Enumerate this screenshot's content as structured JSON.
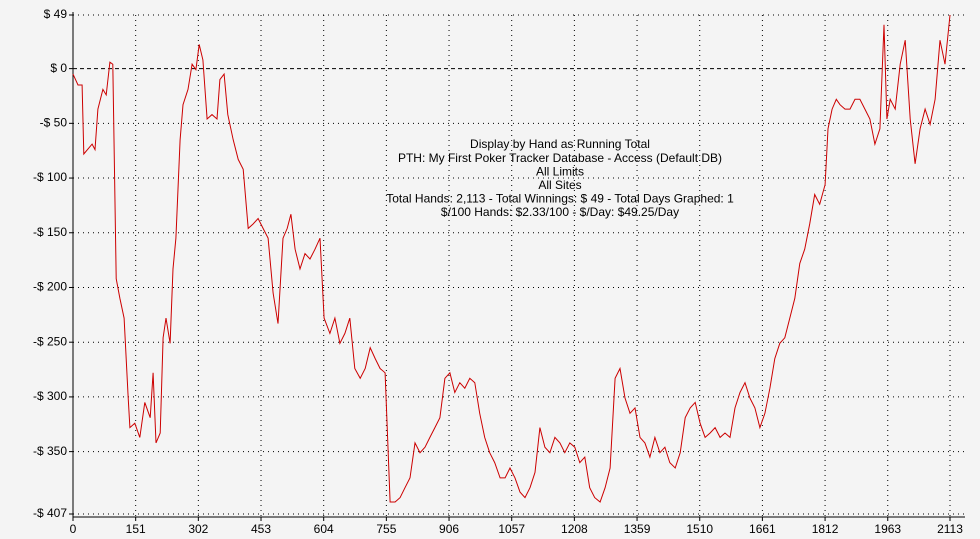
{
  "chart_data": {
    "type": "line",
    "annotations": [
      "Display by Hand as Running Total",
      "PTH: My First Poker Tracker Database - Access (Default DB)",
      "All Limits",
      "All Sites",
      "Total Hands: 2,113 - Total Winnings: $ 49 - Total Days Graphed: 1",
      "$/100 Hands: $2.33/100 - $/Day: $49.25/Day"
    ],
    "color": "#cc0000",
    "grid": true,
    "xlim": [
      0,
      2113
    ],
    "xticks": [
      0,
      151,
      302,
      453,
      604,
      755,
      906,
      1057,
      1208,
      1359,
      1510,
      1661,
      1812,
      1963,
      2113
    ],
    "ylim": [
      -407,
      49
    ],
    "yticks": [
      {
        "value": 49,
        "label": "$ 49"
      },
      {
        "value": 0,
        "label": "$ 0"
      },
      {
        "value": -50,
        "label": "-$ 50"
      },
      {
        "value": -100,
        "label": "-$ 100"
      },
      {
        "value": -150,
        "label": "-$ 150"
      },
      {
        "value": -200,
        "label": "-$ 200"
      },
      {
        "value": -250,
        "label": "-$ 250"
      },
      {
        "value": -300,
        "label": "-$ 300"
      },
      {
        "value": -350,
        "label": "-$ 350"
      },
      {
        "value": -407,
        "label": "-$ 407"
      }
    ],
    "x": [
      0,
      12,
      22,
      26,
      46,
      53,
      60,
      72,
      80,
      89,
      96,
      104,
      113,
      123,
      133,
      137,
      149,
      161,
      173,
      186,
      193,
      200,
      210,
      217,
      224,
      234,
      241,
      248,
      258,
      265,
      277,
      287,
      296,
      304,
      313,
      323,
      335,
      347,
      354,
      364,
      373,
      386,
      398,
      410,
      422,
      434,
      446,
      458,
      470,
      482,
      494,
      506,
      516,
      525,
      535,
      547,
      559,
      571,
      583,
      595,
      605,
      619,
      631,
      643,
      655,
      667,
      679,
      692,
      704,
      716,
      728,
      740,
      752,
      764,
      776,
      788,
      800,
      812,
      824,
      836,
      848,
      860,
      872,
      884,
      896,
      908,
      920,
      932,
      944,
      956,
      968,
      980,
      992,
      1004,
      1016,
      1029,
      1041,
      1053,
      1065,
      1077,
      1089,
      1101,
      1113,
      1125,
      1137,
      1149,
      1161,
      1173,
      1185,
      1197,
      1209,
      1221,
      1233,
      1245,
      1257,
      1270,
      1282,
      1294,
      1306,
      1318,
      1330,
      1342,
      1354,
      1366,
      1378,
      1390,
      1402,
      1414,
      1426,
      1438,
      1451,
      1463,
      1475,
      1487,
      1499,
      1511,
      1523,
      1535,
      1547,
      1559,
      1571,
      1583,
      1595,
      1607,
      1619,
      1631,
      1643,
      1655,
      1667,
      1679,
      1691,
      1703,
      1715,
      1727,
      1739,
      1751,
      1763,
      1775,
      1787,
      1799,
      1812,
      1819,
      1829,
      1839,
      1848,
      1860,
      1872,
      1884,
      1896,
      1908,
      1920,
      1932,
      1944,
      1954,
      1961,
      1969,
      1981,
      1993,
      2005,
      2017,
      2029,
      2041,
      2053,
      2065,
      2077,
      2089,
      2101,
      2113
    ],
    "values": [
      -5,
      -15,
      -15,
      -78,
      -69,
      -74,
      -37,
      -19,
      -24,
      6,
      4,
      -192,
      -210,
      -228,
      -301,
      -328,
      -324,
      -337,
      -305,
      -319,
      -278,
      -342,
      -333,
      -246,
      -228,
      -251,
      -183,
      -155,
      -65,
      -33,
      -19,
      4,
      -1,
      22,
      8,
      -46,
      -42,
      -46,
      -10,
      -5,
      -42,
      -65,
      -83,
      -92,
      -146,
      -142,
      -137,
      -146,
      -155,
      -205,
      -233,
      -155,
      -146,
      -133,
      -165,
      -183,
      -169,
      -174,
      -165,
      -155,
      -228,
      -242,
      -228,
      -251,
      -242,
      -228,
      -274,
      -283,
      -274,
      -255,
      -265,
      -274,
      -278,
      -396,
      -396,
      -392,
      -383,
      -374,
      -342,
      -351,
      -346,
      -337,
      -328,
      -319,
      -283,
      -278,
      -296,
      -287,
      -292,
      -283,
      -287,
      -315,
      -337,
      -351,
      -360,
      -374,
      -374,
      -365,
      -374,
      -387,
      -392,
      -383,
      -369,
      -328,
      -346,
      -351,
      -337,
      -342,
      -351,
      -342,
      -346,
      -360,
      -355,
      -383,
      -392,
      -396,
      -383,
      -365,
      -283,
      -274,
      -301,
      -315,
      -310,
      -337,
      -342,
      -355,
      -337,
      -351,
      -346,
      -360,
      -365,
      -351,
      -319,
      -310,
      -305,
      -324,
      -337,
      -333,
      -328,
      -337,
      -333,
      -337,
      -310,
      -296,
      -287,
      -301,
      -310,
      -328,
      -315,
      -292,
      -265,
      -251,
      -246,
      -228,
      -210,
      -178,
      -165,
      -142,
      -115,
      -124,
      -106,
      -55,
      -37,
      -28,
      -33,
      -37,
      -37,
      -28,
      -28,
      -37,
      -46,
      -69,
      -55,
      40,
      -46,
      -28,
      -37,
      4,
      26,
      -46,
      -87,
      -55,
      -37,
      -51,
      -28,
      26,
      4,
      49
    ]
  }
}
